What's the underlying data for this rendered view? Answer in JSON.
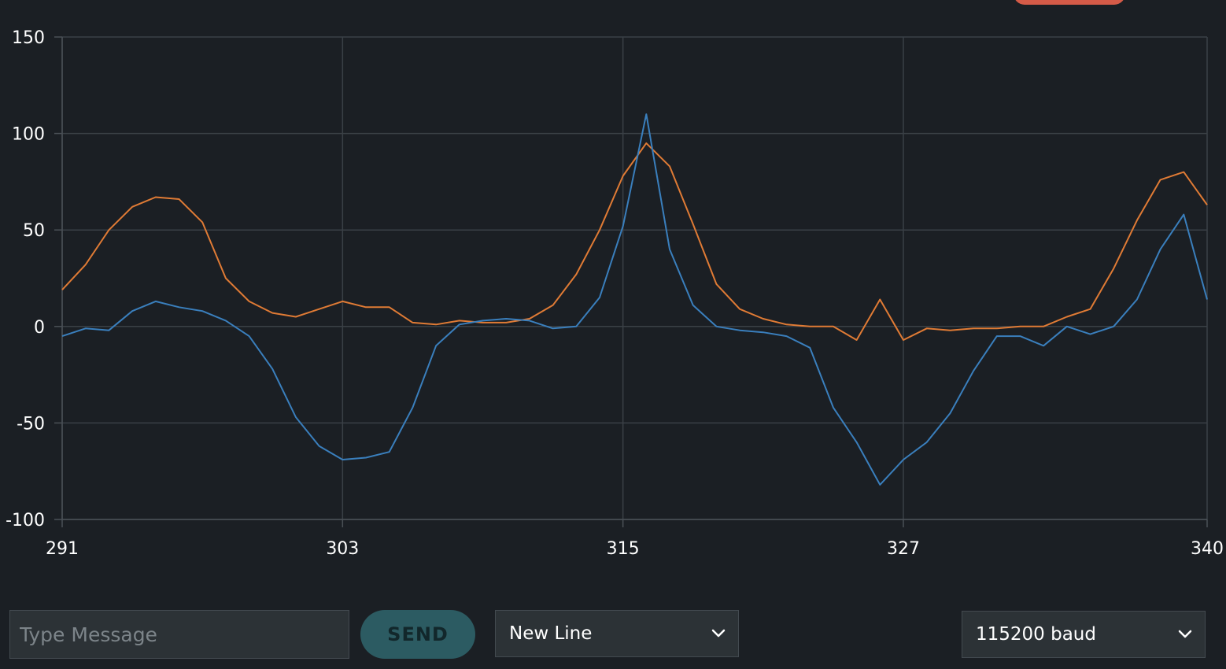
{
  "chart_data": {
    "type": "line",
    "x_ticks": [
      291,
      303,
      315,
      327,
      340
    ],
    "y_ticks": [
      150,
      100,
      50,
      0,
      -50,
      -100
    ],
    "xlim": [
      291,
      340
    ],
    "ylim": [
      -100,
      150
    ],
    "grid": true,
    "series": [
      {
        "color": "#e07b35",
        "x": [
          291,
          292,
          293,
          294,
          295,
          296,
          297,
          298,
          299,
          300,
          301,
          302,
          303,
          304,
          305,
          306,
          307,
          308,
          309,
          310,
          311,
          312,
          313,
          314,
          315,
          316,
          317,
          318,
          319,
          320,
          321,
          322,
          323,
          324,
          325,
          326,
          327,
          328,
          329,
          330,
          331,
          332,
          333,
          334,
          335,
          336,
          337,
          338,
          339,
          340
        ],
        "values": [
          19,
          32,
          50,
          62,
          67,
          66,
          54,
          25,
          13,
          7,
          5,
          9,
          13,
          10,
          10,
          2,
          1,
          3,
          2,
          2,
          4,
          11,
          27,
          50,
          78,
          95,
          83,
          53,
          22,
          9,
          4,
          1,
          0,
          0,
          -7,
          14,
          -7,
          -1,
          -2,
          -1,
          -1,
          0,
          0,
          5,
          9,
          30,
          55,
          76,
          80,
          63
        ]
      },
      {
        "color": "#3a7fbd",
        "x": [
          291,
          292,
          293,
          294,
          295,
          296,
          297,
          298,
          299,
          300,
          301,
          302,
          303,
          304,
          305,
          306,
          307,
          308,
          309,
          310,
          311,
          312,
          313,
          314,
          315,
          316,
          317,
          318,
          319,
          320,
          321,
          322,
          323,
          324,
          325,
          326,
          327,
          328,
          329,
          330,
          331,
          332,
          333,
          334,
          335,
          336,
          337,
          338,
          339,
          340
        ],
        "values": [
          -5,
          -1,
          -2,
          8,
          13,
          10,
          8,
          3,
          -5,
          -22,
          -47,
          -62,
          -69,
          -68,
          -65,
          -42,
          -10,
          1,
          3,
          4,
          3,
          -1,
          0,
          15,
          52,
          110,
          40,
          11,
          0,
          -2,
          -3,
          -5,
          -11,
          -42,
          -60,
          -82,
          -69,
          -60,
          -45,
          -23,
          -5,
          -5,
          -10,
          0,
          -4,
          0,
          14,
          40,
          58,
          14
        ]
      }
    ]
  },
  "input": {
    "placeholder": "Type Message",
    "value": ""
  },
  "send_button": {
    "label": "SEND"
  },
  "line_ending": {
    "selected": "New Line"
  },
  "baud_rate": {
    "selected": "115200 baud"
  },
  "colors": {
    "background": "#1b1f24",
    "accent_pill": "#d55b48",
    "send_button": "#2c5b62"
  },
  "icons": {
    "dropdown_arrow": "chevron-down-icon"
  }
}
